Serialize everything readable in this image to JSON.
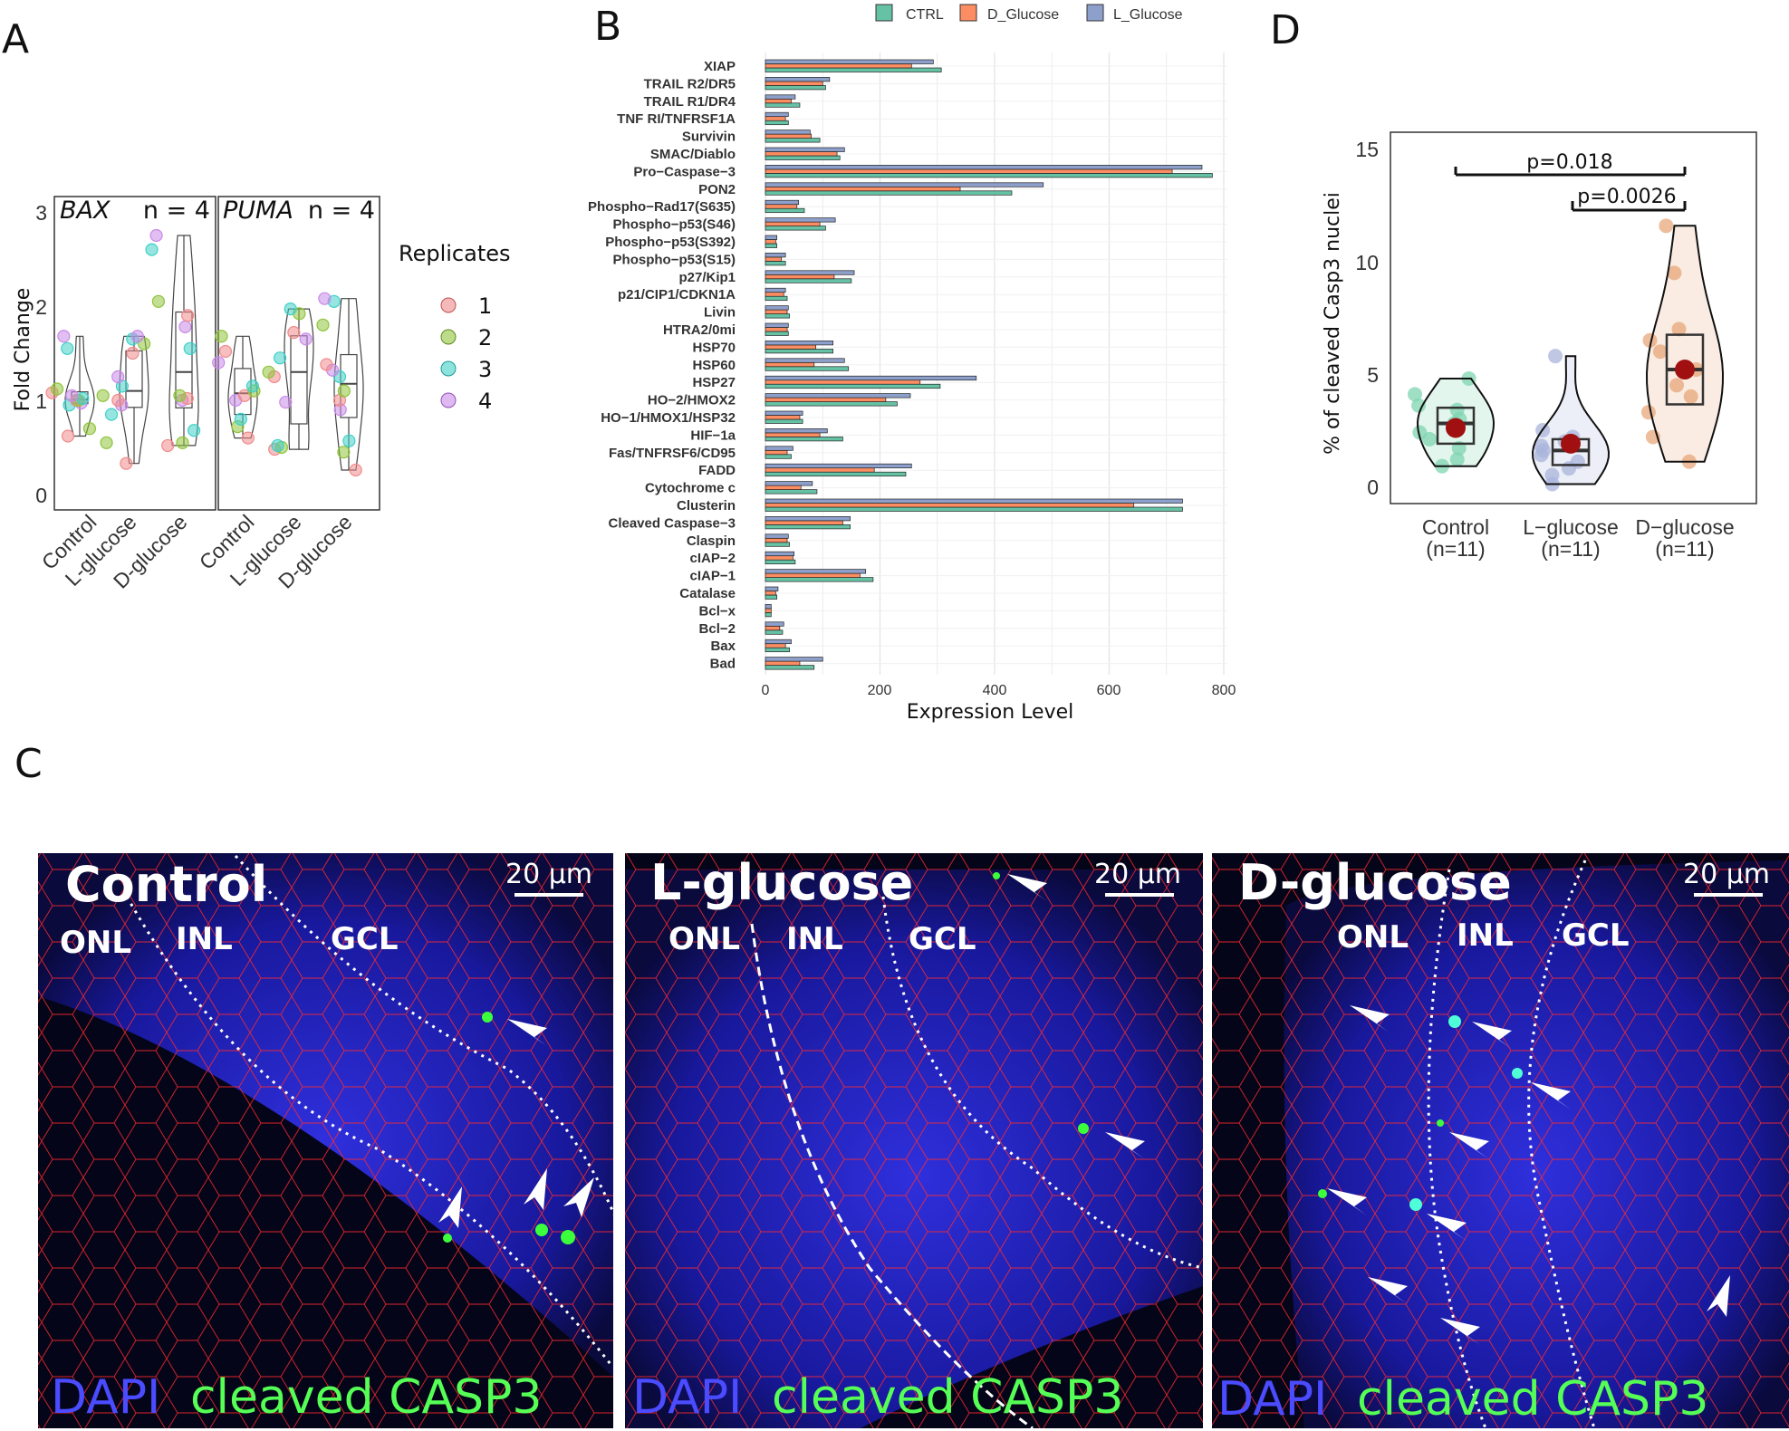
{
  "panels": {
    "a": "A",
    "b": "B",
    "c": "C",
    "d": "D"
  },
  "panel_a": {
    "ylabel": "Fold Change",
    "yticks": [
      "0",
      "1",
      "2",
      "3"
    ],
    "facets": [
      {
        "gene": "BAX",
        "n": "n = 4"
      },
      {
        "gene": "PUMA",
        "n": "n = 4"
      }
    ],
    "groups": [
      "Control",
      "L-glucose",
      "D-glucose"
    ],
    "legend_title": "Replicates",
    "legend_items": [
      "1",
      "2",
      "3",
      "4"
    ],
    "replicate_colors": [
      "#f08a8a",
      "#8fc43c",
      "#3fd0c8",
      "#c98ae8"
    ]
  },
  "panel_b": {
    "legend": [
      "CTRL",
      "D_Glucose",
      "L_Glucose"
    ],
    "xlabel": "Expression Level",
    "xticks": [
      "0",
      "200",
      "400",
      "600",
      "800"
    ],
    "colors": {
      "CTRL": "#66c2a5",
      "D_Glucose": "#fc8d62",
      "L_Glucose": "#8da0cb"
    }
  },
  "panel_c": {
    "images": [
      {
        "title": "Control",
        "scale": "20 μm",
        "layers": [
          "ONL",
          "INL",
          "GCL"
        ],
        "caption_dapi": "DAPI",
        "caption_casp3": "cleaved CASP3"
      },
      {
        "title": "L-glucose",
        "scale": "20 μm",
        "layers": [
          "ONL",
          "INL",
          "GCL"
        ],
        "caption_dapi": "DAPI",
        "caption_casp3": "cleaved CASP3"
      },
      {
        "title": "D-glucose",
        "scale": "20 μm",
        "layers": [
          "ONL",
          "INL",
          "GCL"
        ],
        "caption_dapi": "DAPI",
        "caption_casp3": "cleaved CASP3"
      }
    ]
  },
  "panel_d": {
    "ylabel": "% of cleaved Casp3 nuclei",
    "yticks": [
      "0",
      "5",
      "10",
      "15"
    ],
    "groups": [
      "Control",
      "L−glucose",
      "D−glucose"
    ],
    "ns": [
      "(n=11)",
      "(n=11)",
      "(n=11)"
    ],
    "p_values": [
      "p=0.018",
      "p=0.0026"
    ],
    "colors": [
      "#7fd4b0",
      "#a9b4dc",
      "#e8a77a"
    ]
  },
  "chart_data": [
    {
      "type": "scatter",
      "panel": "A",
      "ylabel": "Fold Change",
      "ylim": [
        0,
        3.1
      ],
      "categories": [
        "Control",
        "L-glucose",
        "D-glucose"
      ],
      "facets": [
        {
          "name": "BAX",
          "groups": [
            {
              "category": "Control",
              "values": [
                0.62,
                0.7,
                0.95,
                0.97,
                1.0,
                1.0,
                1.02,
                1.05,
                1.08,
                1.12,
                1.55,
                1.68
              ]
            },
            {
              "category": "L-glucose",
              "values": [
                0.33,
                0.55,
                0.85,
                0.95,
                1.0,
                1.05,
                1.15,
                1.25,
                1.5,
                1.6,
                1.65,
                1.68
              ]
            },
            {
              "category": "D-glucose",
              "values": [
                0.52,
                0.55,
                0.68,
                1.0,
                1.02,
                1.05,
                1.55,
                1.78,
                1.9,
                2.05,
                2.6,
                2.75
              ]
            }
          ]
        },
        {
          "name": "PUMA",
          "groups": [
            {
              "category": "Control",
              "values": [
                0.6,
                0.72,
                0.8,
                1.0,
                1.05,
                1.1,
                1.15,
                1.4,
                1.52,
                1.68
              ]
            },
            {
              "category": "L-glucose",
              "values": [
                0.48,
                0.5,
                0.52,
                0.98,
                1.25,
                1.3,
                1.45,
                1.65,
                1.72,
                1.92,
                1.97
              ]
            },
            {
              "category": "D-glucose",
              "values": [
                0.26,
                0.45,
                0.57,
                0.9,
                1.0,
                1.1,
                1.25,
                1.32,
                1.38,
                1.8,
                2.05,
                2.08
              ]
            }
          ]
        }
      ]
    },
    {
      "type": "bar",
      "panel": "B",
      "orientation": "horizontal",
      "xlabel": "Expression Level",
      "xlim": [
        0,
        800
      ],
      "categories": [
        "XIAP",
        "TRAIL R2/DR5",
        "TRAIL R1/DR4",
        "TNF RI/TNFRSF1A",
        "Survivin",
        "SMAC/Diablo",
        "Pro−Caspase−3",
        "PON2",
        "Phospho−Rad17(S635)",
        "Phospho−p53(S46)",
        "Phospho−p53(S392)",
        "Phospho−p53(S15)",
        "p27/Kip1",
        "p21/CIP1/CDKN1A",
        "Livin",
        "HTRA2/0mi",
        "HSP70",
        "HSP60",
        "HSP27",
        "HO−2/HMOX2",
        "HO−1/HMOX1/HSP32",
        "HIF−1a",
        "Fas/TNFRSF6/CD95",
        "FADD",
        "Cytochrome c",
        "Clusterin",
        "Cleaved Caspase−3",
        "Claspin",
        "cIAP−2",
        "cIAP−1",
        "Catalase",
        "Bcl−x",
        "Bcl−2",
        "Bax",
        "Bad"
      ],
      "series": [
        {
          "name": "CTRL",
          "values": [
            307,
            105,
            60,
            40,
            95,
            130,
            780,
            430,
            68,
            105,
            20,
            35,
            150,
            38,
            42,
            40,
            118,
            145,
            305,
            230,
            65,
            135,
            45,
            245,
            90,
            728,
            148,
            42,
            52,
            188,
            20,
            10,
            30,
            42,
            85
          ]
        },
        {
          "name": "D_Glucose",
          "values": [
            255,
            100,
            45,
            35,
            80,
            125,
            710,
            340,
            55,
            95,
            18,
            28,
            120,
            32,
            38,
            38,
            88,
            85,
            270,
            210,
            60,
            95,
            38,
            190,
            62,
            643,
            135,
            38,
            48,
            165,
            18,
            10,
            25,
            35,
            60
          ]
        },
        {
          "name": "L_Glucose",
          "values": [
            293,
            112,
            52,
            40,
            78,
            138,
            762,
            485,
            58,
            122,
            20,
            35,
            155,
            35,
            40,
            40,
            118,
            138,
            368,
            253,
            65,
            108,
            48,
            255,
            82,
            728,
            148,
            40,
            50,
            175,
            22,
            10,
            32,
            45,
            100
          ]
        }
      ]
    },
    {
      "type": "scatter",
      "panel": "D",
      "ylabel": "% of cleaved Casp3 nuclei",
      "ylim": [
        -0.5,
        15.5
      ],
      "categories": [
        "Control",
        "L−glucose",
        "D−glucose"
      ],
      "means": [
        2.6,
        1.9,
        5.2
      ],
      "groups": [
        {
          "category": "Control",
          "values": [
            0.9,
            1.2,
            1.7,
            2.1,
            2.4,
            2.8,
            3.0,
            3.4,
            3.6,
            4.1,
            4.8
          ]
        },
        {
          "category": "L−glucose",
          "values": [
            0.1,
            0.5,
            0.8,
            1.1,
            1.4,
            1.6,
            1.8,
            2.0,
            2.2,
            2.5,
            5.8
          ]
        },
        {
          "category": "D−glucose",
          "values": [
            1.1,
            2.2,
            3.3,
            4.0,
            4.5,
            5.2,
            6.0,
            6.5,
            7.0,
            9.5,
            11.6
          ]
        }
      ],
      "comparisons": [
        {
          "from": "Control",
          "to": "D−glucose",
          "label": "p=0.018"
        },
        {
          "from": "L−glucose",
          "to": "D−glucose",
          "label": "p=0.0026"
        }
      ]
    }
  ]
}
